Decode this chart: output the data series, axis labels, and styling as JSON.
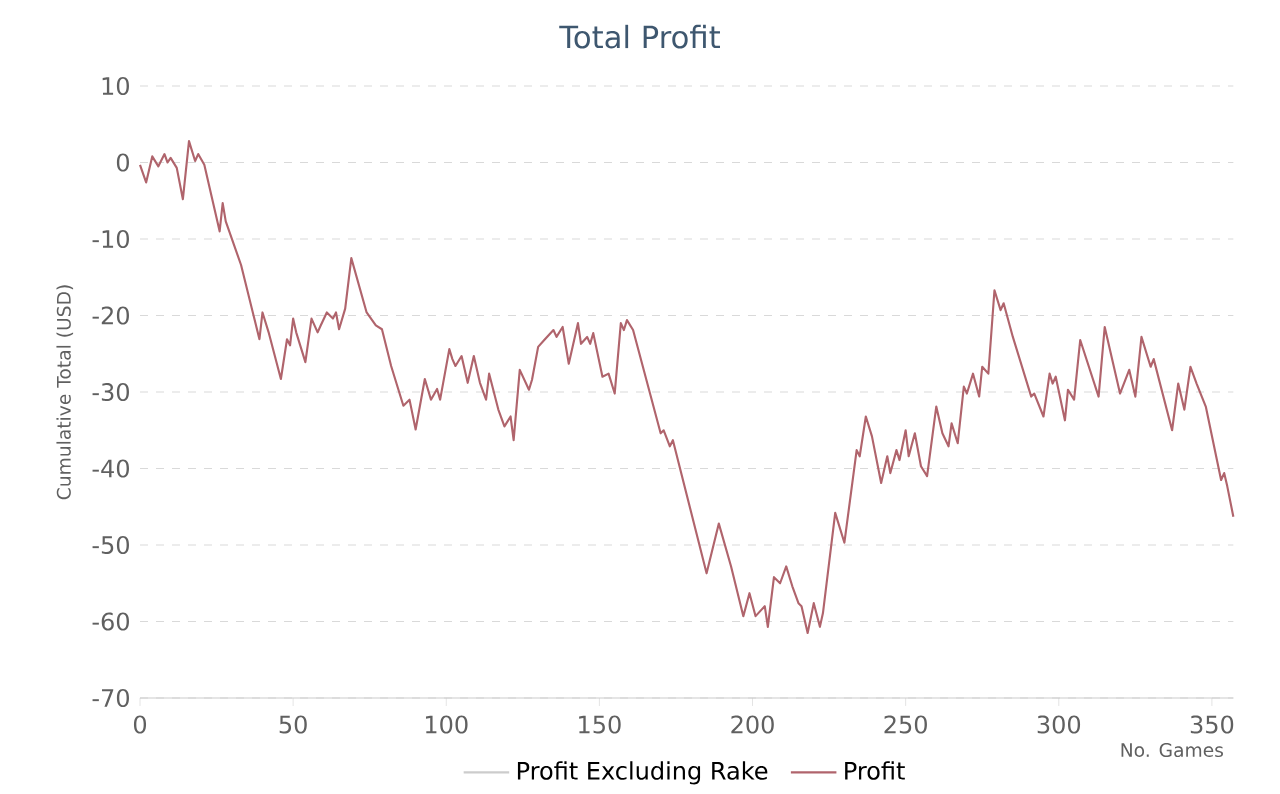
{
  "chart_data": {
    "type": "line",
    "title": "Total Profit",
    "xlabel": "No. Games",
    "ylabel": "Cumulative Total (USD)",
    "xlim": [
      0,
      357
    ],
    "xticks": [
      0,
      50,
      100,
      150,
      200,
      250,
      300,
      350
    ],
    "ylim": [
      -70,
      10
    ],
    "yticks": [
      -70,
      -60,
      -50,
      -40,
      -30,
      -20,
      -10,
      0,
      10
    ],
    "grid": "y",
    "legend": "bottom",
    "marker": "none",
    "line_style": "solid",
    "series": [
      {
        "name": "Profit Excluding Rake",
        "color": "#cccccc"
      },
      {
        "name": "Profit",
        "color": "#b0646c",
        "x": [
          0,
          2,
          4,
          6,
          8,
          9,
          10,
          12,
          14,
          16,
          18,
          19,
          21,
          26,
          27,
          28,
          33,
          39,
          40,
          42,
          46,
          48,
          49,
          50,
          51,
          54,
          56,
          58,
          59,
          61,
          63,
          64,
          65,
          67,
          69,
          74,
          77,
          79,
          82,
          86,
          88,
          90,
          93,
          95,
          97,
          98,
          101,
          102,
          103,
          105,
          107,
          109,
          111,
          113,
          114,
          117,
          119,
          121,
          122,
          124,
          127,
          128,
          130,
          132,
          135,
          136,
          138,
          140,
          143,
          144,
          146,
          147,
          148,
          151,
          153,
          155,
          157,
          158,
          159,
          161,
          170,
          171,
          173,
          174,
          185,
          189,
          193,
          197,
          199,
          201,
          204,
          205,
          207,
          209,
          211,
          213,
          215,
          216,
          218,
          220,
          222,
          223,
          227,
          230,
          234,
          235,
          237,
          239,
          242,
          244,
          245,
          247,
          248,
          250,
          251,
          253,
          255,
          257,
          260,
          262,
          264,
          265,
          267,
          269,
          270,
          272,
          274,
          275,
          277,
          279,
          281,
          282,
          285,
          291,
          292,
          295,
          297,
          298,
          299,
          302,
          303,
          305,
          307,
          313,
          315,
          320,
          323,
          325,
          327,
          330,
          331,
          337,
          339,
          341,
          343,
          345,
          348,
          353,
          354,
          355,
          357
        ],
        "values": [
          -0.3,
          -2.6,
          0.8,
          -0.5,
          1.1,
          0,
          0.6,
          -0.7,
          -4.8,
          2.8,
          0.2,
          1.1,
          -0.3,
          -9.0,
          -5.3,
          -7.7,
          -13.4,
          -23.1,
          -19.6,
          -22.2,
          -28.3,
          -23.1,
          -23.9,
          -20.4,
          -22.2,
          -26.1,
          -20.4,
          -22.2,
          -21.3,
          -19.6,
          -20.4,
          -19.6,
          -21.8,
          -19.1,
          -12.5,
          -19.6,
          -21.3,
          -21.8,
          -26.6,
          -31.8,
          -31.0,
          -34.9,
          -28.3,
          -31.0,
          -29.6,
          -31.0,
          -24.4,
          -25.7,
          -26.6,
          -25.3,
          -28.8,
          -25.3,
          -28.8,
          -31.0,
          -27.6,
          -32.3,
          -34.5,
          -33.2,
          -36.3,
          -27.1,
          -29.7,
          -28.4,
          -24.1,
          -23.2,
          -21.9,
          -22.8,
          -21.5,
          -26.3,
          -21.0,
          -23.7,
          -22.8,
          -23.7,
          -22.3,
          -28.0,
          -27.6,
          -30.2,
          -21.0,
          -21.9,
          -20.6,
          -21.9,
          -35.4,
          -35.0,
          -37.1,
          -36.3,
          -53.7,
          -47.2,
          -52.8,
          -59.3,
          -56.3,
          -59.3,
          -58.0,
          -60.7,
          -54.2,
          -55.0,
          -52.8,
          -55.4,
          -57.6,
          -58.0,
          -61.5,
          -57.6,
          -60.7,
          -58.9,
          -45.8,
          -49.7,
          -37.6,
          -38.4,
          -33.2,
          -35.8,
          -41.9,
          -38.4,
          -40.6,
          -37.6,
          -38.9,
          -35.0,
          -38.4,
          -35.4,
          -39.7,
          -41.0,
          -31.9,
          -35.4,
          -37.1,
          -34.1,
          -36.7,
          -29.3,
          -30.2,
          -27.6,
          -30.6,
          -26.7,
          -27.6,
          -16.7,
          -19.3,
          -18.4,
          -22.8,
          -30.6,
          -30.2,
          -33.2,
          -27.6,
          -28.9,
          -28.0,
          -33.7,
          -29.7,
          -31.0,
          -23.2,
          -30.6,
          -21.5,
          -30.2,
          -27.1,
          -30.6,
          -22.8,
          -26.7,
          -25.7,
          -35.0,
          -28.9,
          -32.3,
          -26.7,
          -28.9,
          -31.9,
          -41.5,
          -40.6,
          -42.3,
          -46.3
        ]
      }
    ]
  }
}
